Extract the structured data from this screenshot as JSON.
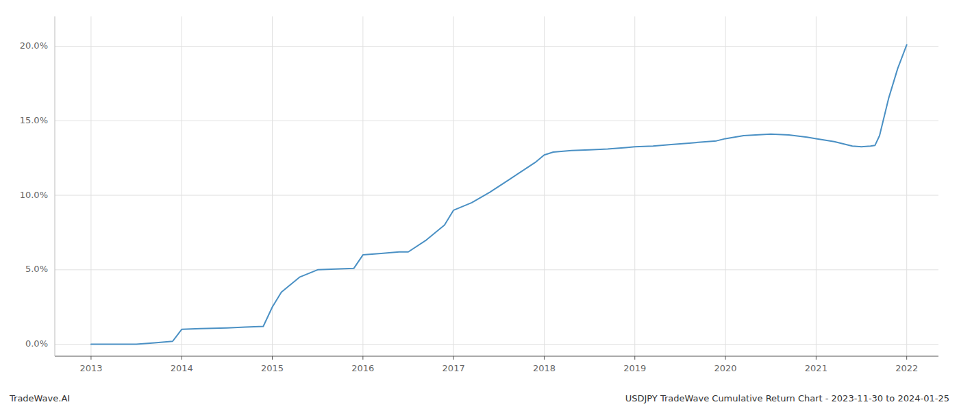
{
  "chart_data": {
    "type": "line",
    "annotations": [
      "TradeWave.AI",
      "USDJPY TradeWave Cumulative Return Chart - 2023-11-30 to 2024-01-25"
    ],
    "color": "#4a90c4",
    "grid": true,
    "x": [
      2013.0,
      2013.1,
      2013.3,
      2013.5,
      2013.7,
      2013.9,
      2014.0,
      2014.2,
      2014.5,
      2014.7,
      2014.9,
      2015.0,
      2015.1,
      2015.3,
      2015.5,
      2015.7,
      2015.9,
      2016.0,
      2016.2,
      2016.4,
      2016.5,
      2016.7,
      2016.9,
      2017.0,
      2017.2,
      2017.4,
      2017.6,
      2017.8,
      2017.9,
      2018.0,
      2018.1,
      2018.3,
      2018.5,
      2018.7,
      2018.9,
      2019.0,
      2019.2,
      2019.4,
      2019.6,
      2019.8,
      2019.9,
      2020.0,
      2020.2,
      2020.5,
      2020.7,
      2020.9,
      2021.0,
      2021.2,
      2021.4,
      2021.5,
      2021.6,
      2021.65,
      2021.7,
      2021.8,
      2021.9,
      2022.0
    ],
    "values": [
      0.0,
      0.0,
      0.0,
      0.0,
      0.1,
      0.2,
      1.0,
      1.05,
      1.1,
      1.15,
      1.2,
      2.5,
      3.5,
      4.5,
      5.0,
      5.05,
      5.1,
      6.0,
      6.1,
      6.2,
      6.2,
      7.0,
      8.0,
      9.0,
      9.5,
      10.2,
      11.0,
      11.8,
      12.2,
      12.7,
      12.9,
      13.0,
      13.05,
      13.1,
      13.2,
      13.25,
      13.3,
      13.4,
      13.5,
      13.6,
      13.65,
      13.8,
      14.0,
      14.1,
      14.05,
      13.9,
      13.8,
      13.6,
      13.3,
      13.25,
      13.3,
      13.35,
      14.0,
      16.5,
      18.5,
      20.1
    ],
    "xlim": [
      2012.6,
      2022.35
    ],
    "ylim": [
      -0.8,
      22.0
    ],
    "xticks": [
      2013,
      2014,
      2015,
      2016,
      2017,
      2018,
      2019,
      2020,
      2021,
      2022
    ],
    "yticks": [
      {
        "value": 0.0,
        "label": "0.0%"
      },
      {
        "value": 5.0,
        "label": "5.0%"
      },
      {
        "value": 10.0,
        "label": "10.0%"
      },
      {
        "value": 15.0,
        "label": "15.0%"
      },
      {
        "value": 20.0,
        "label": "20.0%"
      }
    ]
  }
}
